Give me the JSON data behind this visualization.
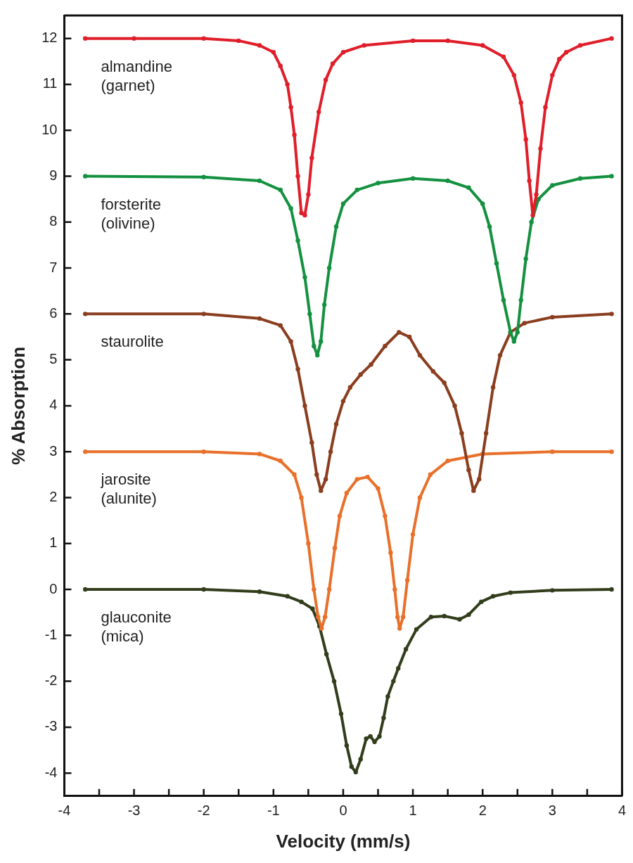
{
  "chart_data": {
    "type": "line",
    "xlabel": "Velocity (mm/s)",
    "ylabel": "% Absorption",
    "xlim": [
      -4,
      4
    ],
    "ylim": [
      -4.5,
      12.5
    ],
    "xticks": [
      -4,
      {
        "value": -3.5,
        "label": null
      },
      -3,
      {
        "value": -2.5,
        "label": null
      },
      -2,
      {
        "value": -1.5,
        "label": null
      },
      -1,
      {
        "value": -0.5,
        "label": null
      },
      0,
      {
        "value": 0.5,
        "label": null
      },
      1,
      {
        "value": 1.5,
        "label": null
      },
      2,
      {
        "value": 2.5,
        "label": null
      },
      3,
      {
        "value": 3.5,
        "label": null
      },
      4
    ],
    "yticks": [
      -4,
      -3,
      -2,
      -1,
      0,
      1,
      2,
      3,
      4,
      5,
      6,
      7,
      8,
      9,
      10,
      11,
      12
    ],
    "grid": false,
    "legend": false,
    "marker": "circle",
    "line_style": "solid",
    "series": [
      {
        "name": "almandine\n(garnet)",
        "color": "#e01e2a",
        "x": [
          -3.7,
          -3,
          -2,
          -1.5,
          -1.2,
          -1.0,
          -0.9,
          -0.8,
          -0.75,
          -0.7,
          -0.65,
          -0.6,
          -0.55,
          -0.5,
          -0.45,
          -0.35,
          -0.25,
          -0.15,
          0,
          0.3,
          1,
          1.5,
          2,
          2.3,
          2.45,
          2.55,
          2.62,
          2.67,
          2.72,
          2.77,
          2.83,
          2.9,
          3.0,
          3.1,
          3.2,
          3.4,
          3.85
        ],
        "values": [
          12.0,
          12.0,
          12.0,
          11.95,
          11.85,
          11.7,
          11.4,
          11.0,
          10.5,
          9.9,
          9.0,
          8.2,
          8.15,
          8.6,
          9.4,
          10.4,
          11.1,
          11.45,
          11.7,
          11.85,
          11.95,
          11.95,
          11.85,
          11.6,
          11.2,
          10.6,
          9.8,
          8.9,
          8.15,
          8.6,
          9.6,
          10.5,
          11.2,
          11.55,
          11.7,
          11.85,
          12.0
        ]
      },
      {
        "name": "forsterite\n(olivine)",
        "color": "#149140",
        "x": [
          -3.7,
          -2,
          -1.2,
          -0.9,
          -0.75,
          -0.65,
          -0.55,
          -0.48,
          -0.42,
          -0.37,
          -0.32,
          -0.27,
          -0.2,
          -0.1,
          0,
          0.2,
          0.5,
          1,
          1.5,
          1.8,
          2.0,
          2.1,
          2.2,
          2.3,
          2.4,
          2.45,
          2.5,
          2.55,
          2.62,
          2.7,
          2.8,
          3.0,
          3.4,
          3.85
        ],
        "values": [
          9.0,
          8.98,
          8.9,
          8.7,
          8.3,
          7.6,
          6.8,
          6.0,
          5.3,
          5.1,
          5.4,
          6.2,
          7.0,
          7.9,
          8.4,
          8.7,
          8.85,
          8.95,
          8.9,
          8.75,
          8.4,
          7.9,
          7.1,
          6.3,
          5.6,
          5.4,
          5.6,
          6.3,
          7.2,
          8.0,
          8.5,
          8.8,
          8.95,
          9.0
        ]
      },
      {
        "name": "staurolite",
        "color": "#8a3e1f",
        "x": [
          -3.7,
          -2,
          -1.2,
          -0.9,
          -0.75,
          -0.65,
          -0.55,
          -0.45,
          -0.38,
          -0.32,
          -0.25,
          -0.18,
          -0.1,
          0,
          0.1,
          0.25,
          0.4,
          0.6,
          0.8,
          0.95,
          1.1,
          1.29,
          1.45,
          1.6,
          1.7,
          1.8,
          1.87,
          1.95,
          2.05,
          2.15,
          2.25,
          2.4,
          2.6,
          3.0,
          3.85
        ],
        "values": [
          6.0,
          6.0,
          5.9,
          5.75,
          5.4,
          4.8,
          4.0,
          3.2,
          2.5,
          2.15,
          2.4,
          3.0,
          3.6,
          4.1,
          4.4,
          4.68,
          4.9,
          5.3,
          5.6,
          5.5,
          5.1,
          4.75,
          4.5,
          4.0,
          3.4,
          2.6,
          2.15,
          2.4,
          3.4,
          4.4,
          5.1,
          5.6,
          5.8,
          5.93,
          6.0
        ]
      },
      {
        "name": "jarosite\n(alunite)",
        "color": "#e8702a",
        "x": [
          -3.7,
          -2,
          -1.2,
          -0.9,
          -0.7,
          -0.6,
          -0.5,
          -0.42,
          -0.36,
          -0.31,
          -0.26,
          -0.2,
          -0.12,
          -0.05,
          0.05,
          0.2,
          0.35,
          0.5,
          0.6,
          0.68,
          0.74,
          0.78,
          0.81,
          0.86,
          0.92,
          1.0,
          1.1,
          1.25,
          1.5,
          2.0,
          3.0,
          3.85
        ],
        "values": [
          3.0,
          3.0,
          2.95,
          2.8,
          2.5,
          2.0,
          1.0,
          0.0,
          -0.6,
          -0.85,
          -0.6,
          0.0,
          0.9,
          1.6,
          2.1,
          2.4,
          2.45,
          2.2,
          1.6,
          0.8,
          0.0,
          -0.6,
          -0.85,
          -0.6,
          0.2,
          1.2,
          2.0,
          2.5,
          2.8,
          2.95,
          3.0,
          3.0
        ]
      },
      {
        "name": "glauconite\n(mica)",
        "color": "#323d1c",
        "x": [
          -3.7,
          -2,
          -1.2,
          -0.8,
          -0.6,
          -0.44,
          -0.34,
          -0.24,
          -0.13,
          -0.03,
          0.05,
          0.12,
          0.18,
          0.25,
          0.33,
          0.39,
          0.45,
          0.52,
          0.58,
          0.64,
          0.72,
          0.79,
          0.9,
          1.05,
          1.26,
          1.45,
          1.67,
          1.8,
          1.98,
          2.15,
          2.4,
          3,
          3.85
        ],
        "values": [
          0,
          0,
          -0.05,
          -0.15,
          -0.27,
          -0.42,
          -0.8,
          -1.41,
          -2.0,
          -2.71,
          -3.4,
          -3.86,
          -3.98,
          -3.7,
          -3.25,
          -3.2,
          -3.32,
          -3.2,
          -2.8,
          -2.33,
          -2.0,
          -1.72,
          -1.3,
          -0.87,
          -0.6,
          -0.58,
          -0.65,
          -0.55,
          -0.27,
          -0.15,
          -0.07,
          -0.02,
          0
        ]
      }
    ]
  }
}
